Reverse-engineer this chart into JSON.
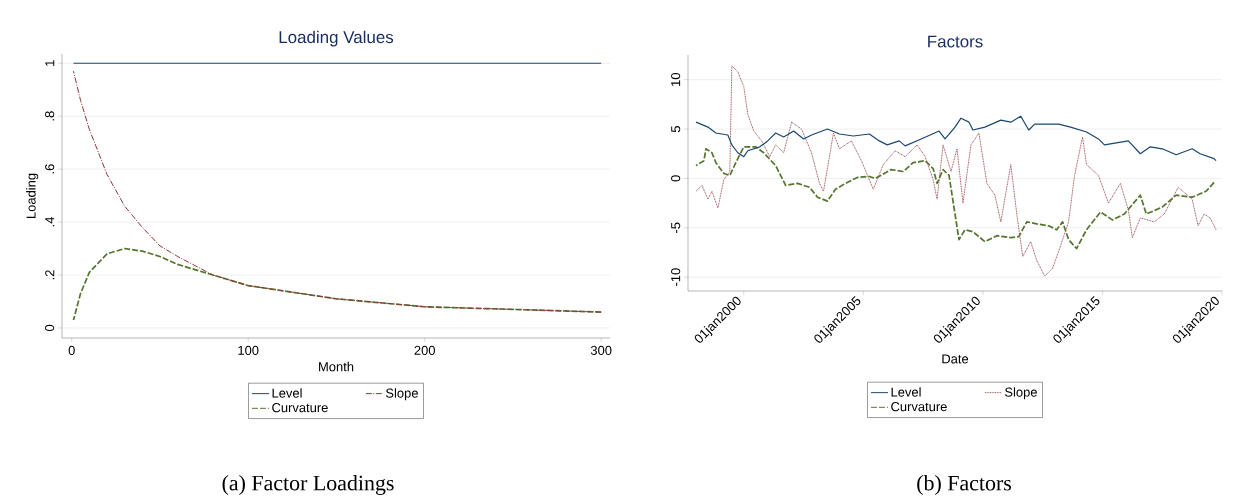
{
  "chart_data": [
    {
      "type": "line",
      "title": "Loading Values",
      "xlabel": "Month",
      "ylabel": "Loading",
      "x": [
        1,
        5,
        10,
        20,
        30,
        40,
        50,
        60,
        80,
        100,
        120,
        150,
        200,
        250,
        300
      ],
      "xlim": [
        -5.5,
        305
      ],
      "xticks": [
        0,
        100,
        200,
        300
      ],
      "ylim": [
        -0.038,
        1.035
      ],
      "yticks": [
        0,
        {
          "value": 0.2,
          "label": ".2"
        },
        {
          "value": 0.4,
          "label": ".4"
        },
        {
          "value": 0.6,
          "label": ".6"
        },
        {
          "value": 0.8,
          "label": ".8"
        },
        1
      ],
      "grid": "y",
      "legend": "bottom",
      "series": [
        {
          "name": "Level",
          "color": "#1a476f",
          "line_style": "solid",
          "values": [
            1,
            1,
            1,
            1,
            1,
            1,
            1,
            1,
            1,
            1,
            1,
            1,
            1,
            1,
            1
          ]
        },
        {
          "name": "Slope",
          "color": "#90353b",
          "line_style": "dashdot",
          "values": [
            0.97,
            0.86,
            0.75,
            0.58,
            0.46,
            0.38,
            0.31,
            0.27,
            0.2,
            0.16,
            0.14,
            0.11,
            0.08,
            0.07,
            0.06
          ]
        },
        {
          "name": "Curvature",
          "color": "#55752f",
          "line_style": "dashed",
          "values": [
            0.03,
            0.13,
            0.21,
            0.28,
            0.3,
            0.29,
            0.27,
            0.24,
            0.2,
            0.16,
            0.14,
            0.11,
            0.08,
            0.07,
            0.06
          ]
        }
      ],
      "annotations": [
        "(a) Factor Loadings"
      ]
    },
    {
      "type": "line",
      "title": "Factors",
      "xlabel": "Date",
      "xlim": [
        "1997-09",
        "2020-01"
      ],
      "xticks": [
        {
          "value": "2000-01-01",
          "label": "01jan2000"
        },
        {
          "value": "2005-01-01",
          "label": "01jan2005"
        },
        {
          "value": "2010-01-01",
          "label": "01jan2010"
        },
        {
          "value": "2015-01-01",
          "label": "01jan2015"
        },
        {
          "value": "2020-01-01",
          "label": "01jan2020"
        }
      ],
      "ylim": [
        -11.4,
        12.5
      ],
      "yticks": [
        -10,
        -5,
        0,
        5,
        10
      ],
      "grid": "y",
      "legend": "bottom",
      "series": [
        {
          "name": "Level",
          "color": "#1a476f",
          "line_style": "solid",
          "x": [
            "1998-01",
            "1998-07",
            "1998-11",
            "1999-05",
            "1999-07",
            "1999-10",
            "2000-01",
            "2000-03",
            "2000-09",
            "2001-01",
            "2001-05",
            "2001-09",
            "2002-02",
            "2002-07",
            "2002-11",
            "2003-07",
            "2004-01",
            "2004-08",
            "2005-04",
            "2005-09",
            "2006-01",
            "2006-07",
            "2006-10",
            "2007-06",
            "2008-03",
            "2008-06",
            "2008-11",
            "2009-02",
            "2009-06",
            "2009-08",
            "2010-02",
            "2010-10",
            "2011-03",
            "2011-08",
            "2011-12",
            "2012-03",
            "2012-10",
            "2013-03",
            "2013-09",
            "2014-05",
            "2014-11",
            "2015-02",
            "2015-08",
            "2016-02",
            "2016-08",
            "2017-01",
            "2017-07",
            "2018-02",
            "2018-10",
            "2019-02",
            "2019-09",
            "2019-10"
          ],
          "values": [
            5.7,
            5.2,
            4.6,
            4.4,
            3.4,
            2.6,
            2.2,
            2.8,
            3.2,
            3.8,
            4.6,
            4.2,
            4.8,
            4.0,
            4.4,
            5.0,
            4.5,
            4.3,
            4.5,
            3.8,
            3.4,
            3.8,
            3.3,
            4.0,
            4.8,
            4.0,
            5.2,
            6.1,
            5.7,
            4.9,
            5.2,
            5.9,
            5.7,
            6.3,
            4.9,
            5.5,
            5.5,
            5.5,
            5.2,
            4.7,
            4.0,
            3.4,
            3.6,
            3.8,
            2.5,
            3.2,
            3.0,
            2.4,
            3.0,
            2.5,
            2.0,
            1.8
          ]
        },
        {
          "name": "Slope",
          "color": "#a0525a",
          "line_style": "dotted",
          "x": [
            "1998-01",
            "1998-04",
            "1998-07",
            "1998-09",
            "1998-12",
            "1999-03",
            "1999-06",
            "1999-07",
            "1999-10",
            "2000-01",
            "2000-03",
            "2000-06",
            "2000-10",
            "2001-02",
            "2001-05",
            "2001-09",
            "2002-01",
            "2002-06",
            "2002-11",
            "2003-03",
            "2003-05",
            "2003-10",
            "2004-01",
            "2004-07",
            "2004-12",
            "2005-06",
            "2005-11",
            "2006-05",
            "2006-10",
            "2007-04",
            "2007-08",
            "2007-12",
            "2008-02",
            "2008-05",
            "2008-09",
            "2008-12",
            "2009-03",
            "2009-07",
            "2009-11",
            "2010-03",
            "2010-07",
            "2010-10",
            "2011-01",
            "2011-03",
            "2011-06",
            "2011-09",
            "2012-01",
            "2012-04",
            "2012-08",
            "2012-12",
            "2013-04",
            "2013-08",
            "2013-11",
            "2014-03",
            "2014-05",
            "2014-11",
            "2015-04",
            "2015-10",
            "2016-02",
            "2016-04",
            "2016-08",
            "2017-03",
            "2017-08",
            "2018-03",
            "2018-10",
            "2019-01",
            "2019-04",
            "2019-07",
            "2019-10"
          ],
          "values": [
            -1.3,
            -0.7,
            -2.1,
            -1.3,
            -3.0,
            -0.1,
            0.7,
            11.4,
            10.8,
            9.3,
            6.5,
            4.8,
            3.8,
            2.2,
            3.4,
            2.6,
            5.7,
            5.0,
            2.6,
            -0.5,
            -1.3,
            4.6,
            3.0,
            3.8,
            1.8,
            -1.1,
            1.4,
            2.8,
            2.2,
            3.4,
            2.2,
            -0.1,
            -2.1,
            3.4,
            0.7,
            3.0,
            -2.5,
            3.4,
            4.6,
            -0.5,
            -1.7,
            -4.4,
            -0.9,
            1.4,
            -3.6,
            -7.9,
            -6.4,
            -8.3,
            -9.9,
            -9.1,
            -6.8,
            -4.4,
            0.3,
            4.2,
            1.4,
            0.3,
            -2.5,
            -0.5,
            -3.2,
            -6.0,
            -4.0,
            -4.4,
            -3.6,
            -0.9,
            -2.1,
            -4.8,
            -3.6,
            -4.0,
            -5.2
          ]
        },
        {
          "name": "Curvature",
          "color": "#55752f",
          "line_style": "dashed",
          "x": [
            "1998-01",
            "1998-05",
            "1998-06",
            "1998-09",
            "1998-11",
            "1999-03",
            "1999-06",
            "1999-09",
            "2000-01",
            "2000-07",
            "2000-11",
            "2001-05",
            "2001-10",
            "2002-04",
            "2002-10",
            "2003-02",
            "2003-07",
            "2003-11",
            "2004-04",
            "2004-10",
            "2005-04",
            "2005-07",
            "2006-03",
            "2006-09",
            "2007-02",
            "2007-08",
            "2007-12",
            "2008-02",
            "2008-05",
            "2008-08",
            "2008-11",
            "2009-01",
            "2009-04",
            "2009-08",
            "2010-02",
            "2010-08",
            "2011-03",
            "2011-07",
            "2011-11",
            "2012-04",
            "2012-10",
            "2013-02",
            "2013-05",
            "2013-08",
            "2013-12",
            "2014-05",
            "2014-12",
            "2015-06",
            "2015-12",
            "2016-08",
            "2016-11",
            "2017-07",
            "2018-02",
            "2018-10",
            "2019-05",
            "2019-09"
          ],
          "values": [
            1.3,
            1.8,
            3.0,
            2.6,
            1.6,
            0.5,
            0.3,
            1.6,
            3.2,
            3.2,
            2.6,
            1.3,
            -0.7,
            -0.5,
            -0.9,
            -1.9,
            -2.3,
            -1.1,
            -0.5,
            0.1,
            0.2,
            0.0,
            0.9,
            0.7,
            1.6,
            1.8,
            1.0,
            -0.5,
            0.9,
            0.3,
            -3.6,
            -6.2,
            -5.2,
            -5.4,
            -6.4,
            -5.8,
            -6.0,
            -5.9,
            -4.4,
            -4.6,
            -4.8,
            -5.2,
            -4.4,
            -6.2,
            -7.1,
            -5.2,
            -3.4,
            -4.2,
            -3.6,
            -1.7,
            -3.6,
            -2.9,
            -1.7,
            -1.9,
            -1.3,
            -0.4
          ]
        }
      ],
      "annotations": [
        "(b) Factors"
      ]
    }
  ]
}
